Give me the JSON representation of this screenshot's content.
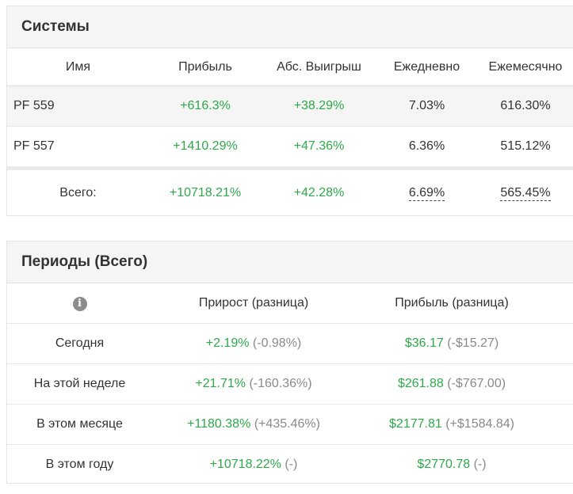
{
  "systems": {
    "title": "Системы",
    "columns": [
      "Имя",
      "Прибыль",
      "Абс. Выигрыш",
      "Ежедневно",
      "Ежемесячно"
    ],
    "rows": [
      {
        "name": "PF 559",
        "profit": "+616.3%",
        "abs_gain": "+38.29%",
        "daily": "7.03%",
        "monthly": "616.30%"
      },
      {
        "name": "PF 557",
        "profit": "+1410.29%",
        "abs_gain": "+47.36%",
        "daily": "6.36%",
        "monthly": "515.12%"
      }
    ],
    "total": {
      "label": "Всего:",
      "profit": "+10718.21%",
      "abs_gain": "+42.28%",
      "daily": "6.69%",
      "monthly": "565.45%"
    }
  },
  "periods": {
    "title": "Периоды (Всего)",
    "info_icon": "i",
    "columns": [
      "Прирост (разница)",
      "Прибыль (разница)"
    ],
    "rows": [
      {
        "label": "Сегодня",
        "growth": "+2.19%",
        "growth_diff": "(-0.98%)",
        "profit": "$36.17",
        "profit_diff": "(-$15.27)"
      },
      {
        "label": "На этой неделе",
        "growth": "+21.71%",
        "growth_diff": "(-160.36%)",
        "profit": "$261.88",
        "profit_diff": "(-$767.00)"
      },
      {
        "label": "В этом месяце",
        "growth": "+1180.38%",
        "growth_diff": "(+435.46%)",
        "profit": "$2177.81",
        "profit_diff": "(+$1584.84)"
      },
      {
        "label": "В этом году",
        "growth": "+10718.22%",
        "growth_diff": "(-)",
        "profit": "$2770.78",
        "profit_diff": "(-)"
      }
    ]
  },
  "colors": {
    "positive": "#2ea84a",
    "muted": "#8a8a8a",
    "header_bg": "#f5f5f5"
  }
}
